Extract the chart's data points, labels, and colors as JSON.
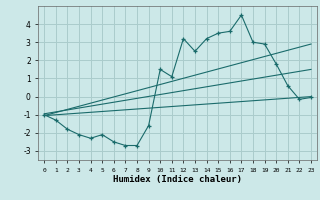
{
  "xlabel": "Humidex (Indice chaleur)",
  "bg_color": "#cce8e8",
  "grid_color": "#aacccc",
  "line_color": "#1a6b6b",
  "x_data": [
    0,
    1,
    2,
    3,
    4,
    5,
    6,
    7,
    8,
    9,
    10,
    11,
    12,
    13,
    14,
    15,
    16,
    17,
    18,
    19,
    20,
    21,
    22,
    23
  ],
  "y_scatter": [
    -1.0,
    -1.3,
    -1.8,
    -2.1,
    -2.3,
    -2.1,
    -2.5,
    -2.7,
    -2.7,
    -1.6,
    1.5,
    1.1,
    3.2,
    2.5,
    3.2,
    3.5,
    3.6,
    4.5,
    3.0,
    2.9,
    1.8,
    0.6,
    -0.15,
    -0.05
  ],
  "ylim": [
    -3.5,
    5.0
  ],
  "xlim": [
    -0.5,
    23.5
  ],
  "line1": [
    -1.05,
    0.0
  ],
  "line2": [
    -1.05,
    2.9
  ],
  "line3": [
    -0.95,
    1.5
  ]
}
